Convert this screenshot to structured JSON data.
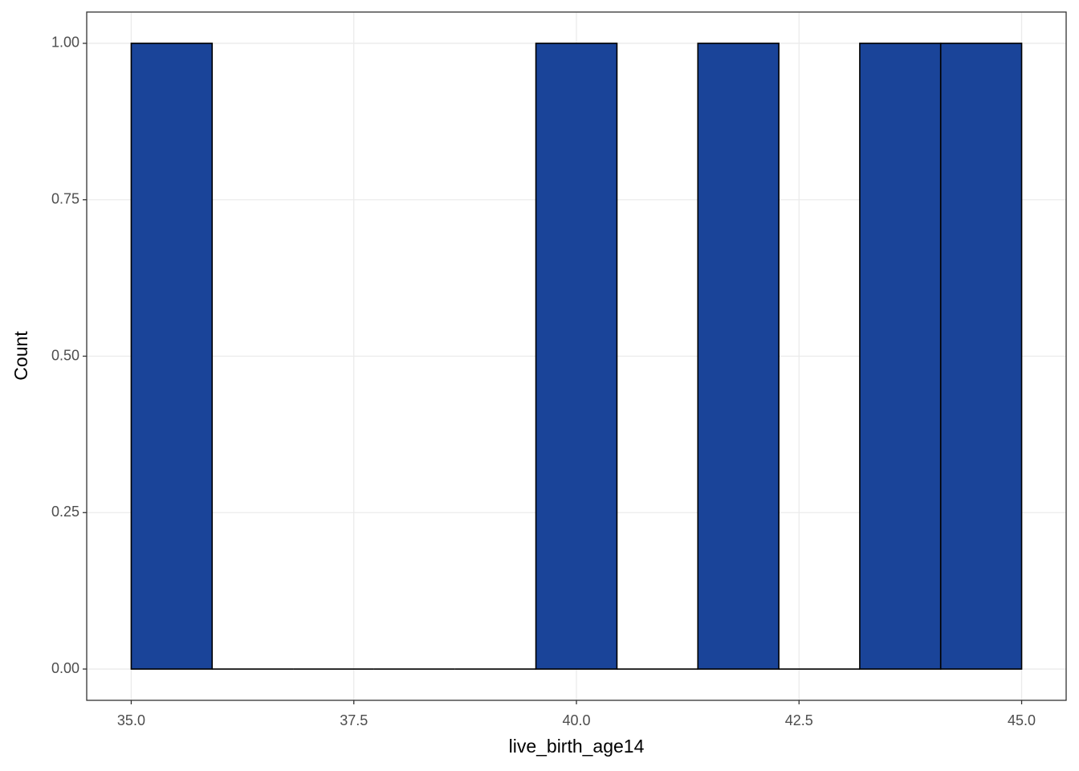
{
  "chart_data": {
    "type": "histogram",
    "x_label": "live_birth_age14",
    "y_label": "Count",
    "bins": [
      35,
      35.909,
      36.818,
      37.727,
      38.636,
      39.545,
      40.455,
      41.364,
      42.273,
      43.182,
      44.091,
      45
    ],
    "values": [
      1,
      0,
      0,
      0,
      0,
      1,
      0,
      1,
      0,
      1,
      1
    ],
    "color": "#1a4499",
    "edge_color": "#000000",
    "xlim": [
      34.5,
      45.5
    ],
    "ylim": [
      -0.05,
      1.05
    ],
    "xticks": [
      {
        "value": 35,
        "label": "35.0"
      },
      37.5,
      {
        "value": 40,
        "label": "40.0"
      },
      42.5,
      {
        "value": 45,
        "label": "45.0"
      }
    ],
    "yticks": [
      {
        "value": 0,
        "label": "0.00"
      },
      0.25,
      {
        "value": 0.5,
        "label": "0.50"
      },
      0.75,
      {
        "value": 1,
        "label": "1.00"
      }
    ],
    "grid": true
  }
}
